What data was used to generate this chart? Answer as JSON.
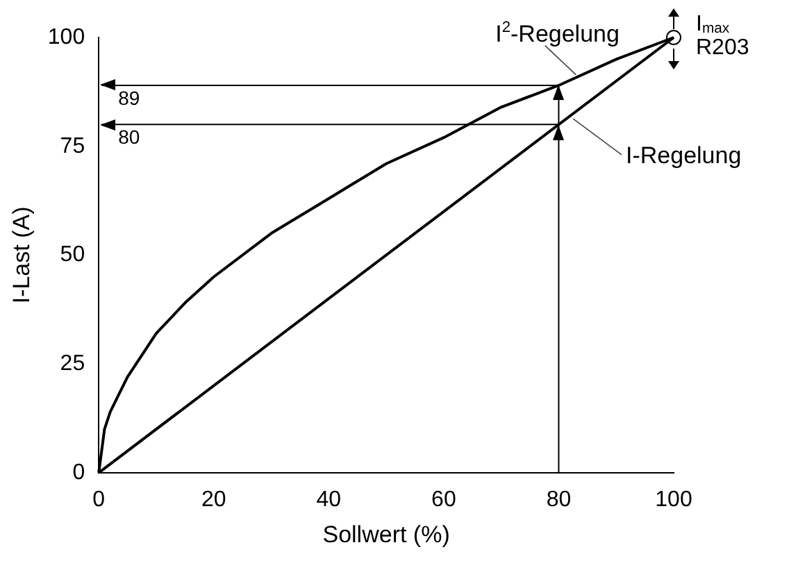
{
  "chart_data": {
    "type": "line",
    "xlabel": "Sollwert (%)",
    "ylabel": "I-Last (A)",
    "xlim": [
      0,
      100
    ],
    "ylim": [
      0,
      100
    ],
    "xticks": [
      0,
      20,
      40,
      60,
      80,
      100
    ],
    "yticks": [
      0,
      25,
      50,
      75,
      100
    ],
    "series": [
      {
        "name": "I$^{2}$-Regelung",
        "color": "#000000",
        "x": [
          0,
          1,
          2,
          5,
          10,
          15,
          20,
          30,
          40,
          50,
          60,
          70,
          80,
          90,
          100
        ],
        "values": [
          0,
          10,
          14,
          22,
          32,
          39,
          45,
          55,
          63,
          71,
          77,
          84,
          89,
          95,
          100
        ]
      },
      {
        "name": "I-Regelung",
        "color": "#000000",
        "x": [
          0,
          100
        ],
        "values": [
          0,
          100
        ]
      },
      {
        "type": "scatter",
        "color": "#000000",
        "x": [
          100
        ],
        "values": [
          100
        ]
      }
    ],
    "ref_lines": [
      {
        "axis": "y",
        "value": 89,
        "label": "89"
      },
      {
        "axis": "y",
        "value": 80,
        "label": "80"
      },
      {
        "axis": "x",
        "value": 80
      }
    ],
    "annotations": [
      {
        "text": "I$_{max}$\nR203",
        "x": 100,
        "y": 100
      }
    ],
    "grid": false,
    "legend": false
  }
}
